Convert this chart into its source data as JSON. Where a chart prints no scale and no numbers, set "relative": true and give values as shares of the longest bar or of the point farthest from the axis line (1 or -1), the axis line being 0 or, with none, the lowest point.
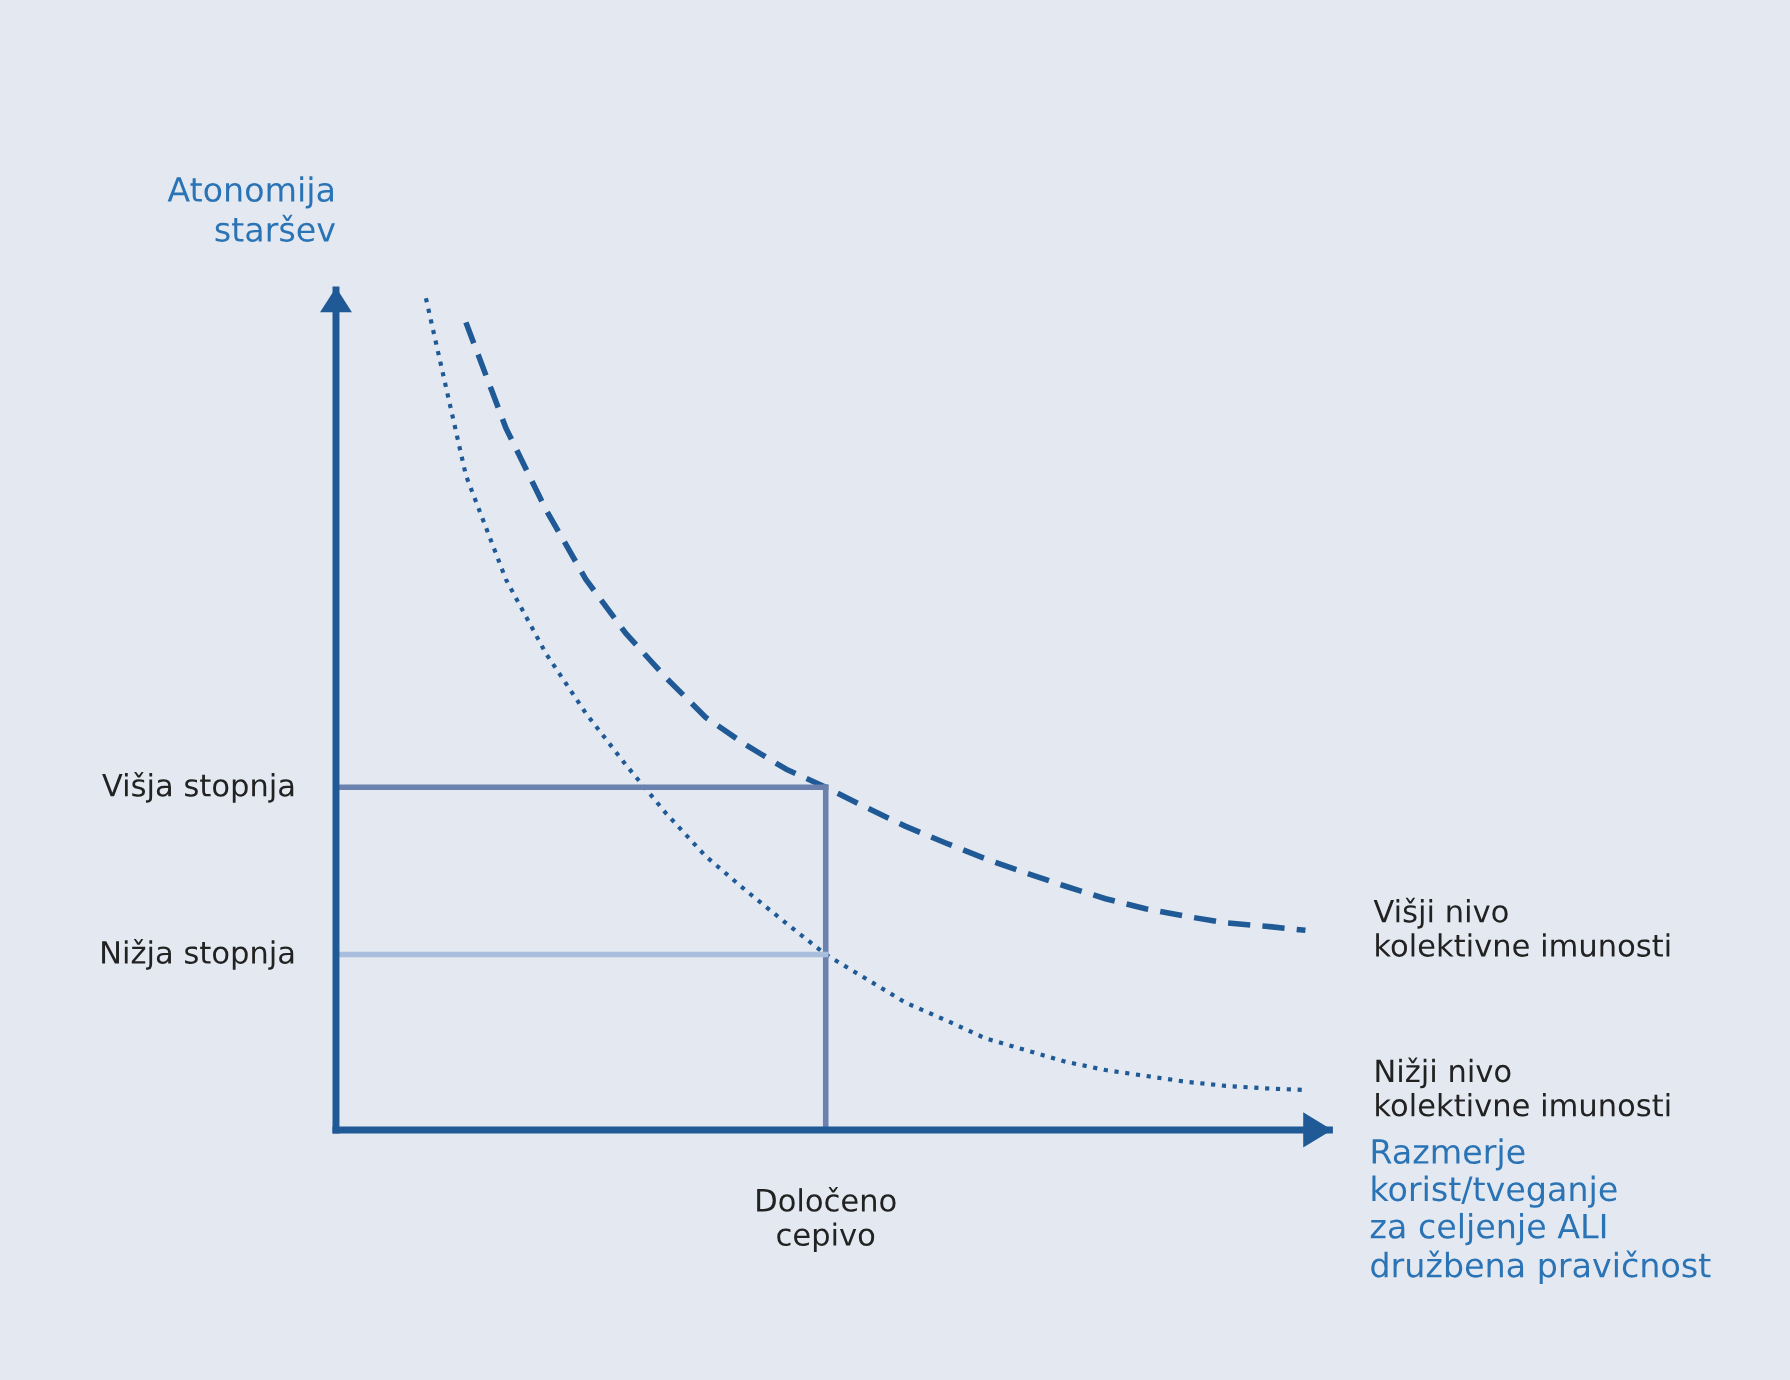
{
  "chart_data": {
    "type": "line",
    "relative": true,
    "xlabel": "Razmerje\nkorist/tveganje\nza celjenje ALI\ndružbena pravičnost",
    "ylabel": "Atonomija\nstaršev",
    "legend": false,
    "annotations": [
      "Določeno\ncepivo"
    ],
    "marker": "none",
    "categories": [
      null,
      null,
      null,
      null,
      null,
      null,
      null,
      null,
      null,
      null,
      null,
      null,
      null,
      null,
      null,
      null,
      null,
      null,
      null,
      null,
      null,
      null,
      null
    ],
    "series": [
      {
        "name": "Višji nivo\nkolektivne imunosti",
        "color": "#1f5a96",
        "line_style": "dashed",
        "values": [
          null,
          0.971,
          0.844,
          0.746,
          0.662,
          0.597,
          0.544,
          0.496,
          0.463,
          0.434,
          0.412,
          0.388,
          0.365,
          0.345,
          0.326,
          0.309,
          0.293,
          0.278,
          0.266,
          0.257,
          0.249,
          0.245,
          0.24
        ]
      },
      {
        "name": "Nižji nivo\nkolektivne imunosti",
        "color": "#1f5a96",
        "line_style": "dotted",
        "values": [
          1.0,
          0.787,
          0.662,
          0.573,
          0.501,
          0.439,
          0.381,
          0.329,
          0.288,
          0.249,
          0.211,
          0.182,
          0.153,
          0.132,
          0.11,
          0.096,
          0.082,
          0.072,
          0.065,
          0.058,
          0.053,
          0.05,
          0.048
        ]
      }
    ],
    "ref_lines": [
      {
        "axis": "y",
        "value": 0.412,
        "label": "Višja stopnja",
        "color": "#6a82ad"
      },
      {
        "axis": "y",
        "value": 0.211,
        "label": "Nižja stopnja",
        "color": "#a9bedc"
      }
    ]
  }
}
